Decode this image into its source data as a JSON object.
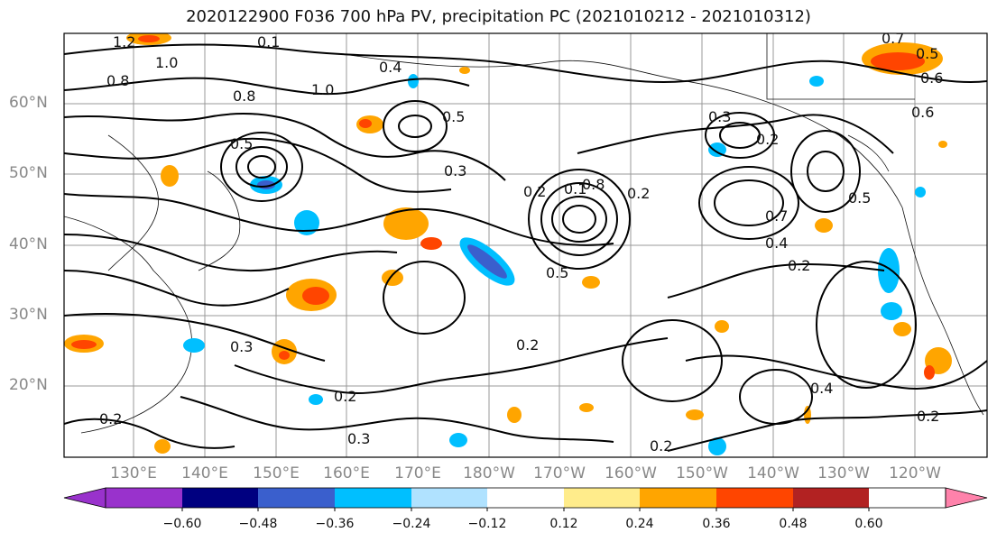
{
  "title": "2020122900 F036 700 hPa PV, precipitation PC (2021010212 - 2021010312)",
  "lat_labels": [
    "60°N",
    "50°N",
    "40°N",
    "30°N",
    "20°N"
  ],
  "lon_labels": [
    "130°E",
    "140°E",
    "150°E",
    "160°E",
    "170°E",
    "180°W",
    "170°W",
    "160°W",
    "150°W",
    "140°W",
    "130°W",
    "120°W"
  ],
  "contour_labels": [
    "1.2",
    "0.8",
    "1.0",
    "0.1",
    "0.4",
    "0.5",
    "0.3",
    "1.0",
    "0.8",
    "0.5",
    "0.2",
    "0.1",
    "0.8",
    "0.2",
    "0.5",
    "0.7",
    "0.4",
    "0.2",
    "0.3",
    "0.2",
    "0.5",
    "0.6",
    "0.2",
    "0.3",
    "0.2",
    "0.2",
    "0.3",
    "0.4",
    "0.2",
    "0.2",
    "0.7",
    "0.6",
    "0.5"
  ],
  "colorbar": {
    "ticks": [
      "−0.60",
      "−0.48",
      "−0.36",
      "−0.24",
      "−0.12",
      "0.12",
      "0.24",
      "0.36",
      "0.48",
      "0.60"
    ],
    "colors": [
      "#9932cc",
      "#000080",
      "#3a5fcd",
      "#00bfff",
      "#b0e2ff",
      "#ffffff",
      "#ffec8b",
      "#ffa500",
      "#ff4500",
      "#b22222",
      "#ff82ab"
    ]
  }
}
